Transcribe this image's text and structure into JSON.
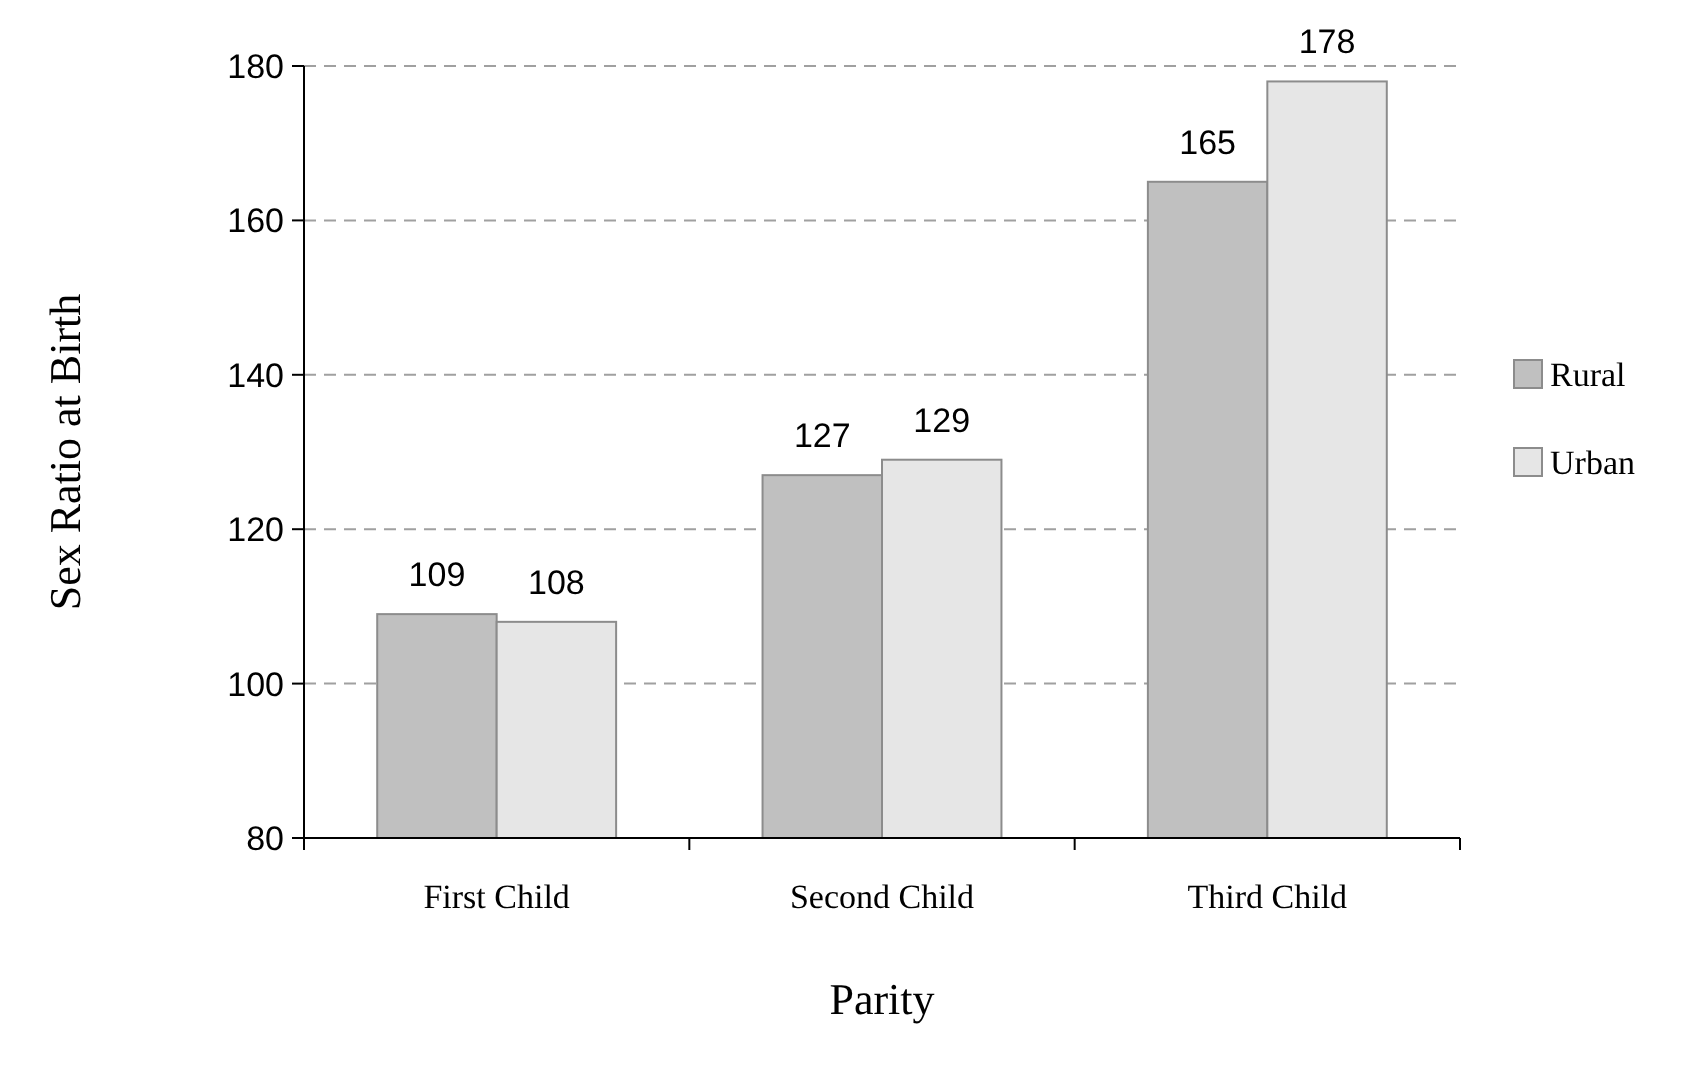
{
  "chart_data": {
    "type": "bar",
    "xlabel": "Parity",
    "ylabel": "Sex Ratio at Birth",
    "categories": [
      "First Child",
      "Second Child",
      "Third Child"
    ],
    "series": [
      {
        "name": "Rural",
        "color": "#c0c0c0",
        "values": [
          109,
          127,
          165
        ]
      },
      {
        "name": "Urban",
        "color": "#e6e6e6",
        "values": [
          108,
          129,
          178
        ]
      }
    ],
    "ylim": [
      80,
      180
    ],
    "yticks": [
      80,
      100,
      120,
      140,
      160,
      180
    ],
    "grid": "y",
    "legend": "right",
    "data_labels": true
  }
}
